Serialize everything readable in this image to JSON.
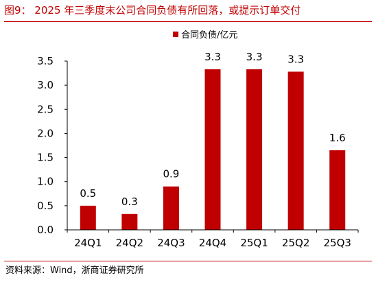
{
  "figure": {
    "title": "图9：  2025 年三季度末公司合同负债有所回落，或提示订单交付",
    "source": "资料来源：Wind，浙商证券研究所"
  },
  "colors": {
    "bar": "#c00000",
    "title": "#c00000",
    "axis": "#000000",
    "text": "#000000"
  },
  "chart_data": {
    "type": "bar",
    "categories": [
      "24Q1",
      "24Q2",
      "24Q3",
      "24Q4",
      "25Q1",
      "25Q2",
      "25Q3"
    ],
    "series": [
      {
        "name": "合同负债/亿元",
        "values": [
          0.5,
          0.33,
          0.9,
          3.33,
          3.33,
          3.28,
          1.65
        ],
        "labels": [
          "0.5",
          "0.3",
          "0.9",
          "3.3",
          "3.3",
          "3.3",
          "1.6"
        ]
      }
    ],
    "ylim": [
      0,
      3.5
    ],
    "yticks": [
      "0.0",
      "0.5",
      "1.0",
      "1.5",
      "2.0",
      "2.5",
      "3.0",
      "3.5"
    ],
    "grid": false,
    "legend_position": "top-center"
  }
}
